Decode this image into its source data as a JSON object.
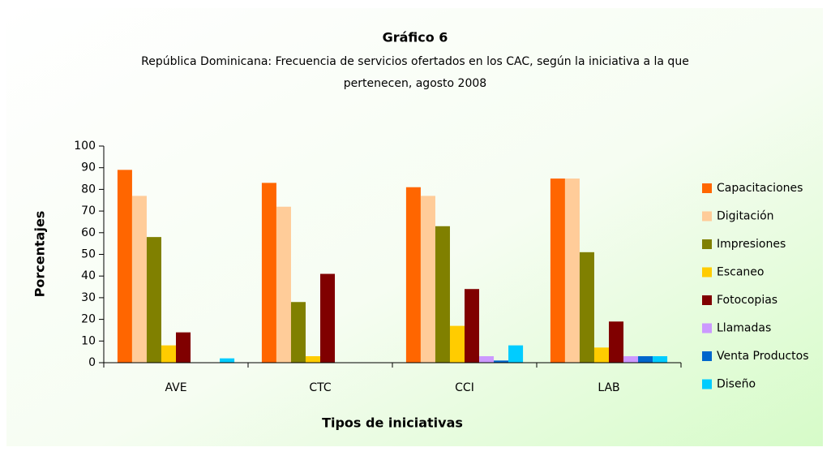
{
  "chart_data": {
    "type": "bar",
    "title": "Gráfico 6",
    "subtitle": [
      "República Dominicana: Frecuencia de servicios ofertados en los CAC, según la iniciativa a la que",
      "pertenecen,  agosto 2008"
    ],
    "x_label": "Tipos de iniciativas",
    "y_label": "Porcentajes",
    "categories": [
      "AVE",
      "CTC",
      "CCI",
      "LAB"
    ],
    "series": [
      {
        "name": "Capacitaciones",
        "color": "#ff6600",
        "values": [
          89,
          83,
          81,
          85
        ]
      },
      {
        "name": "Digitación",
        "color": "#ffcc99",
        "values": [
          77,
          72,
          77,
          85
        ]
      },
      {
        "name": "Impresiones",
        "color": "#808000",
        "values": [
          58,
          28,
          63,
          51
        ]
      },
      {
        "name": "Escaneo",
        "color": "#ffcc00",
        "values": [
          8,
          3,
          17,
          7
        ]
      },
      {
        "name": "Fotocopias",
        "color": "#800000",
        "values": [
          14,
          41,
          34,
          19
        ]
      },
      {
        "name": "Llamadas",
        "color": "#cc99ff",
        "values": [
          0,
          0,
          3,
          3
        ]
      },
      {
        "name": "Venta Productos",
        "color": "#0066cc",
        "values": [
          0,
          0,
          1,
          3
        ]
      },
      {
        "name": "Diseño",
        "color": "#00ccff",
        "values": [
          2,
          0,
          8,
          3
        ]
      }
    ],
    "ylim": [
      0,
      100
    ],
    "yticks": [
      0,
      10,
      20,
      30,
      40,
      50,
      60,
      70,
      80,
      90,
      100
    ],
    "grid": false,
    "legend": "right"
  }
}
